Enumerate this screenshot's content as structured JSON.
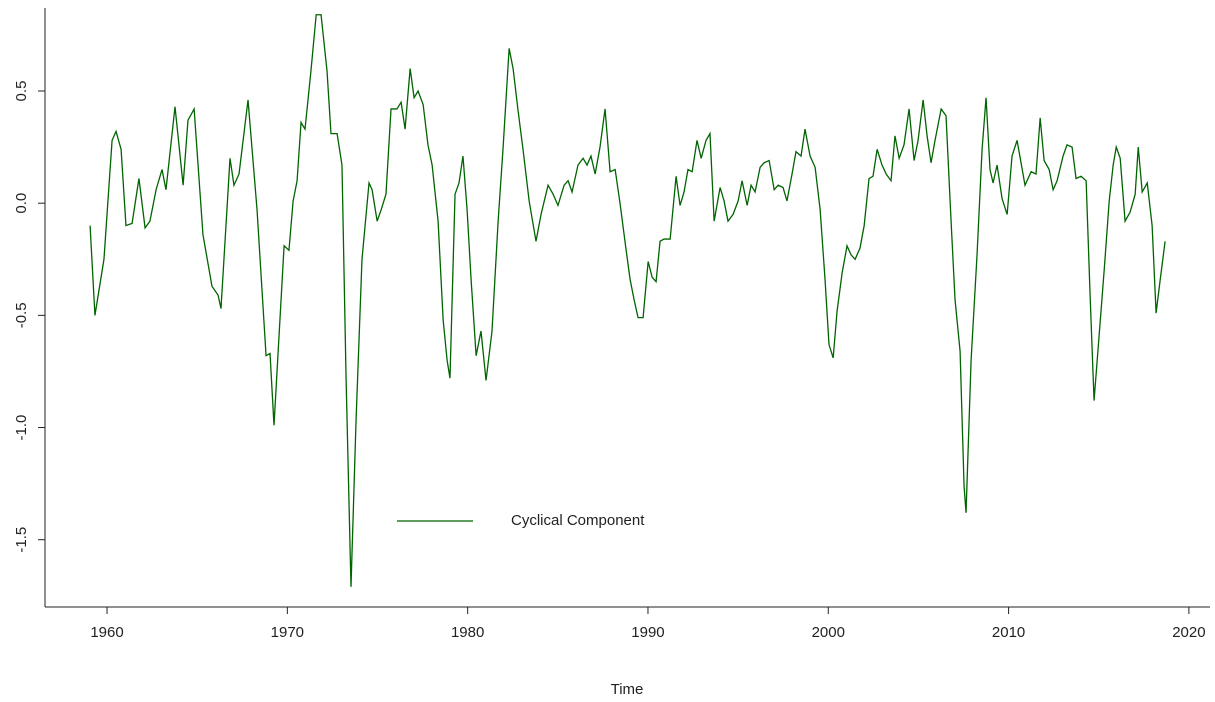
{
  "chart_data": {
    "type": "line",
    "x_label": "Time",
    "xlim": [
      1956.56,
      2021.17
    ],
    "ylim": [
      -1.8,
      0.87
    ],
    "xticks": [
      1960,
      1970,
      1980,
      1990,
      2000,
      2010,
      2020
    ],
    "yticks": [
      -1.5,
      {
        "value": -1.0,
        "label": "-1.0"
      },
      -0.5,
      {
        "value": 0.0,
        "label": "0.0"
      },
      0.5
    ],
    "legend": "bottom-left",
    "series": [
      {
        "name": "Cyclical Component",
        "color": "#006400",
        "x": [
          1959.06,
          1959.33,
          1959.83,
          1960.28,
          1960.5,
          1960.78,
          1961.05,
          1961.39,
          1961.77,
          1962.11,
          1962.38,
          1962.72,
          1963.05,
          1963.27,
          1963.77,
          1964.22,
          1964.49,
          1964.83,
          1965.32,
          1965.82,
          1966.16,
          1966.32,
          1966.82,
          1967.04,
          1967.32,
          1967.82,
          1968.32,
          1968.82,
          1969.04,
          1969.26,
          1969.82,
          1970.09,
          1970.32,
          1970.54,
          1970.76,
          1970.98,
          1971.31,
          1971.6,
          1971.87,
          1972.2,
          1972.42,
          1972.76,
          1973.03,
          1973.26,
          1973.53,
          1973.81,
          1974.14,
          1974.53,
          1974.7,
          1974.98,
          1975.2,
          1975.47,
          1975.75,
          1976.08,
          1976.31,
          1976.53,
          1976.81,
          1977.03,
          1977.25,
          1977.53,
          1977.8,
          1978.03,
          1978.36,
          1978.64,
          1978.86,
          1979.02,
          1979.3,
          1979.52,
          1979.74,
          1979.97,
          1980.19,
          1980.47,
          1980.74,
          1981.02,
          1981.35,
          1981.69,
          1981.96,
          1982.3,
          1982.52,
          1982.8,
          1983.07,
          1983.41,
          1983.79,
          1984.07,
          1984.46,
          1984.74,
          1985.01,
          1985.35,
          1985.57,
          1985.79,
          1986.12,
          1986.4,
          1986.62,
          1986.84,
          1987.07,
          1987.34,
          1987.62,
          1987.9,
          1988.18,
          1988.45,
          1988.79,
          1989.01,
          1989.23,
          1989.45,
          1989.73,
          1990.01,
          1990.23,
          1990.45,
          1990.67,
          1990.89,
          1991.23,
          1991.56,
          1991.78,
          1992.0,
          1992.22,
          1992.45,
          1992.72,
          1992.95,
          1993.22,
          1993.44,
          1993.67,
          1994.0,
          1994.22,
          1994.44,
          1994.72,
          1995.0,
          1995.22,
          1995.5,
          1995.72,
          1995.94,
          1996.22,
          1996.44,
          1996.72,
          1997.0,
          1997.22,
          1997.49,
          1997.71,
          1997.99,
          1998.21,
          1998.49,
          1998.71,
          1998.99,
          1999.27,
          1999.55,
          1999.82,
          2000.04,
          2000.27,
          2000.49,
          2000.77,
          2001.04,
          2001.26,
          2001.49,
          2001.76,
          2001.99,
          2002.26,
          2002.48,
          2002.71,
          2002.98,
          2003.21,
          2003.48,
          2003.7,
          2003.93,
          2004.2,
          2004.48,
          2004.76,
          2004.98,
          2005.26,
          2005.48,
          2005.7,
          2005.92,
          2006.26,
          2006.53,
          2006.81,
          2007.03,
          2007.31,
          2007.53,
          2007.64,
          2007.92,
          2008.25,
          2008.53,
          2008.75,
          2008.97,
          2009.14,
          2009.36,
          2009.64,
          2009.92,
          2010.19,
          2010.47,
          2010.69,
          2010.91,
          2011.25,
          2011.52,
          2011.75,
          2011.97,
          2012.25,
          2012.47,
          2012.69,
          2013.02,
          2013.24,
          2013.52,
          2013.74,
          2014.02,
          2014.3,
          2014.52,
          2014.74,
          2015.02,
          2015.3,
          2015.58,
          2015.8,
          2015.97,
          2016.19,
          2016.46,
          2016.74,
          2017.02,
          2017.19,
          2017.41,
          2017.69,
          2017.96,
          2018.18,
          2018.41,
          2018.68
        ],
        "values": [
          -0.1,
          -0.5,
          -0.25,
          0.28,
          0.32,
          0.24,
          -0.1,
          -0.09,
          0.11,
          -0.11,
          -0.08,
          0.06,
          0.15,
          0.06,
          0.43,
          0.08,
          0.37,
          0.42,
          -0.14,
          -0.37,
          -0.41,
          -0.47,
          0.2,
          0.08,
          0.13,
          0.46,
          -0.03,
          -0.68,
          -0.67,
          -0.99,
          -0.19,
          -0.21,
          0.01,
          0.1,
          0.36,
          0.33,
          0.59,
          0.84,
          0.84,
          0.59,
          0.31,
          0.31,
          0.17,
          -0.79,
          -1.71,
          -0.97,
          -0.25,
          0.09,
          0.06,
          -0.08,
          -0.03,
          0.04,
          0.42,
          0.42,
          0.45,
          0.33,
          0.6,
          0.47,
          0.5,
          0.44,
          0.26,
          0.17,
          -0.08,
          -0.52,
          -0.7,
          -0.78,
          0.04,
          0.09,
          0.21,
          -0.03,
          -0.34,
          -0.68,
          -0.57,
          -0.79,
          -0.57,
          -0.08,
          0.24,
          0.69,
          0.6,
          0.41,
          0.24,
          0.01,
          -0.17,
          -0.05,
          0.08,
          0.04,
          -0.01,
          0.08,
          0.1,
          0.05,
          0.17,
          0.2,
          0.17,
          0.21,
          0.13,
          0.25,
          0.42,
          0.14,
          0.15,
          0.0,
          -0.21,
          -0.34,
          -0.43,
          -0.51,
          -0.51,
          -0.26,
          -0.33,
          -0.35,
          -0.17,
          -0.16,
          -0.16,
          0.12,
          -0.01,
          0.05,
          0.15,
          0.14,
          0.28,
          0.2,
          0.28,
          0.31,
          -0.08,
          0.07,
          0.01,
          -0.08,
          -0.05,
          0.01,
          0.1,
          -0.01,
          0.08,
          0.05,
          0.16,
          0.18,
          0.19,
          0.06,
          0.08,
          0.07,
          0.01,
          0.13,
          0.23,
          0.21,
          0.33,
          0.21,
          0.16,
          -0.03,
          -0.34,
          -0.63,
          -0.69,
          -0.48,
          -0.31,
          -0.19,
          -0.23,
          -0.25,
          -0.2,
          -0.1,
          0.11,
          0.12,
          0.24,
          0.17,
          0.13,
          0.1,
          0.3,
          0.2,
          0.26,
          0.42,
          0.19,
          0.28,
          0.46,
          0.3,
          0.18,
          0.28,
          0.42,
          0.39,
          -0.08,
          -0.43,
          -0.66,
          -1.26,
          -1.38,
          -0.7,
          -0.23,
          0.24,
          0.47,
          0.15,
          0.09,
          0.17,
          0.02,
          -0.05,
          0.21,
          0.28,
          0.18,
          0.08,
          0.14,
          0.13,
          0.38,
          0.19,
          0.15,
          0.06,
          0.1,
          0.21,
          0.26,
          0.25,
          0.11,
          0.12,
          0.1,
          -0.41,
          -0.88,
          -0.59,
          -0.3,
          0.01,
          0.17,
          0.25,
          0.2,
          -0.08,
          -0.04,
          0.04,
          0.25,
          0.05,
          0.09,
          -0.1,
          -0.49,
          -0.34,
          -0.17
        ]
      }
    ]
  }
}
